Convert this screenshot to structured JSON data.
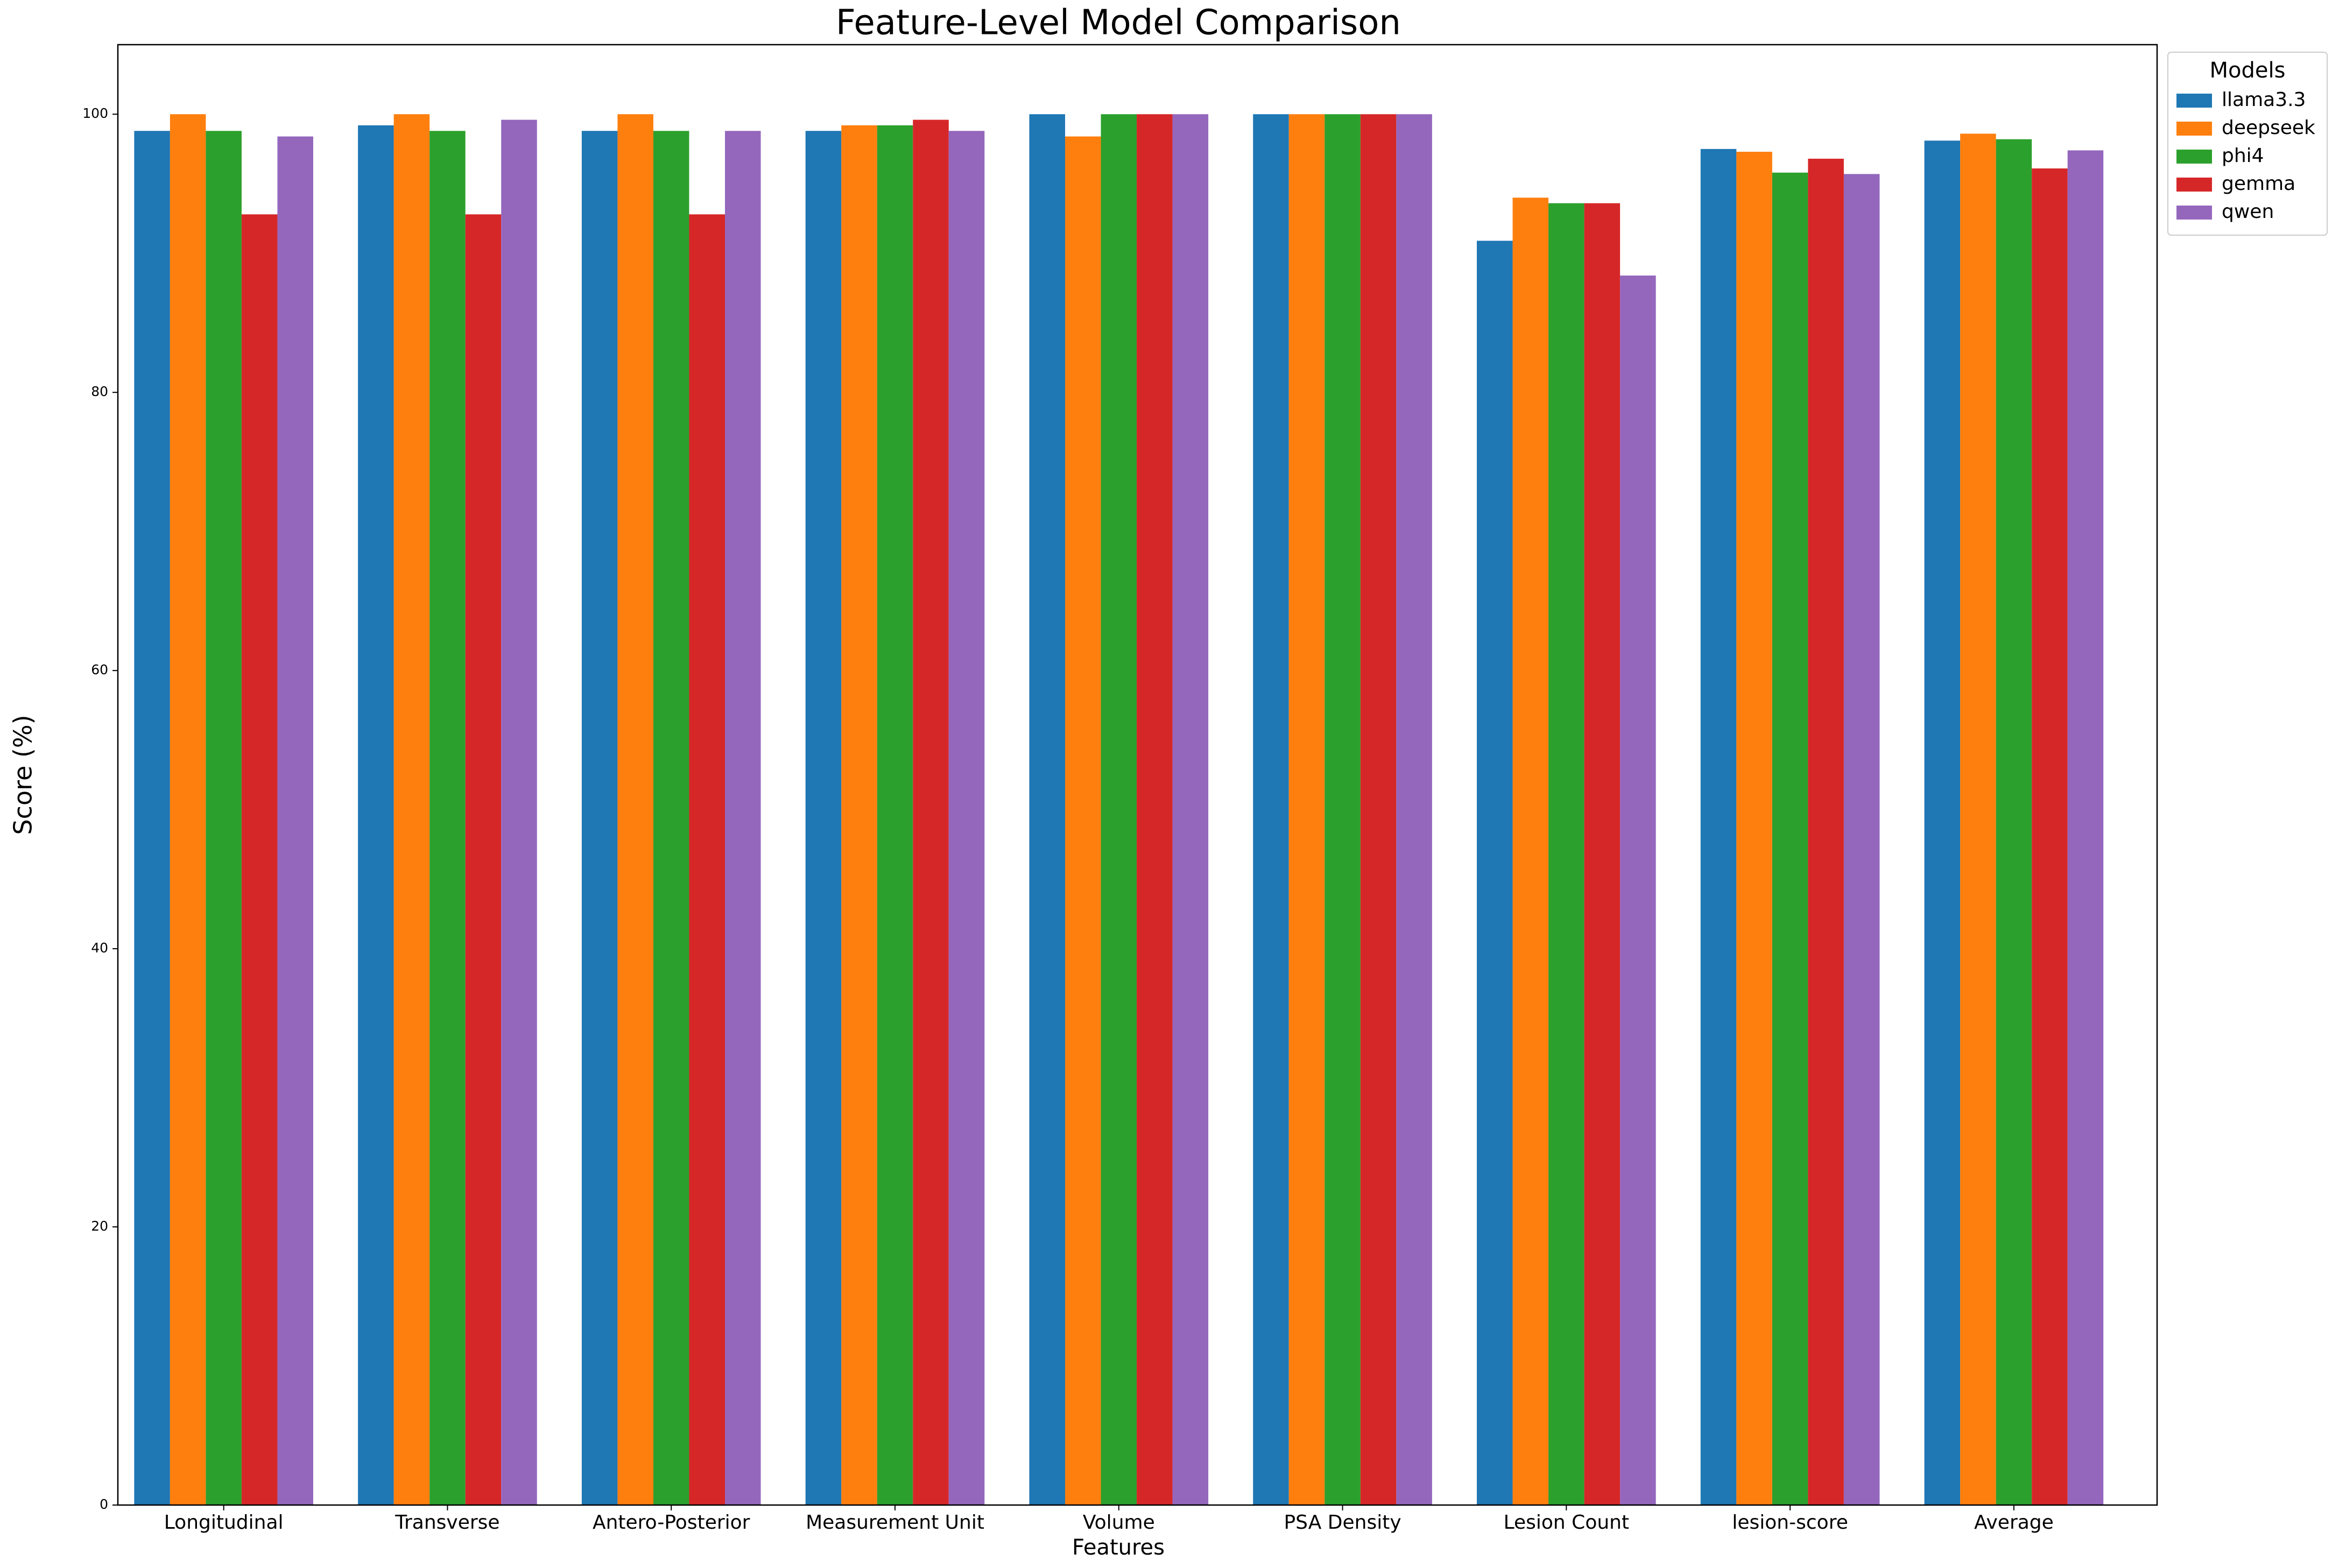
{
  "chart_data": {
    "type": "bar",
    "title": "Feature-Level Model Comparison",
    "x_label": "Features",
    "y_label": "Score (%)",
    "categories": [
      "Longitudinal",
      "Transverse",
      "Antero-Posterior",
      "Measurement Unit",
      "Volume",
      "PSA Density",
      "Lesion Count",
      "lesion-score",
      "Average"
    ],
    "series": [
      {
        "name": "llama3.3",
        "color": "#1f77b4",
        "values": [
          98.8,
          99.2,
          98.8,
          98.8,
          100,
          100,
          90.9,
          97.5,
          98.1
        ]
      },
      {
        "name": "deepseek",
        "color": "#ff7f0e",
        "values": [
          100,
          100,
          100,
          99.2,
          98.4,
          100,
          94.0,
          97.3,
          98.6
        ]
      },
      {
        "name": "phi4",
        "color": "#2ca02c",
        "values": [
          98.8,
          98.8,
          98.8,
          99.2,
          100,
          100,
          93.6,
          95.8,
          98.2
        ]
      },
      {
        "name": "gemma",
        "color": "#d62728",
        "values": [
          92.8,
          92.8,
          92.8,
          99.6,
          100,
          100,
          93.6,
          96.8,
          96.1
        ]
      },
      {
        "name": "qwen",
        "color": "#9467bd",
        "values": [
          98.4,
          99.6,
          98.8,
          98.8,
          100,
          100,
          88.4,
          95.7,
          97.4
        ]
      }
    ],
    "legend_title": "Models",
    "ylim": [
      0,
      105
    ],
    "yticks": [
      0,
      20,
      40,
      60,
      80,
      100
    ],
    "grid": false
  }
}
